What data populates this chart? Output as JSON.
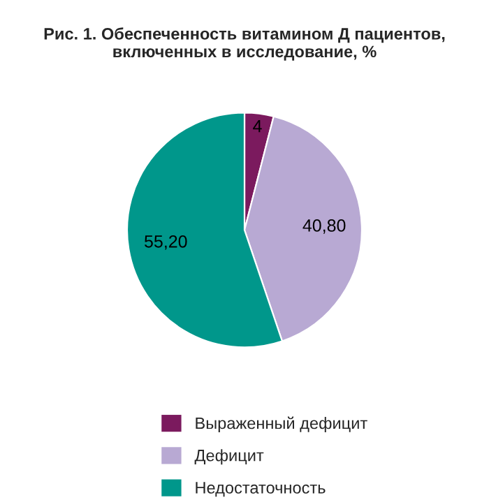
{
  "chart_data": {
    "type": "pie",
    "title": "Рис. 1. Обеспеченность витамином Д пациентов, включенных в исследование, %",
    "categories": [
      "Выраженный дефицит",
      "Дефицит",
      "Недостаточность"
    ],
    "values": [
      4,
      40.8,
      55.2
    ],
    "value_labels": [
      "4",
      "40,80",
      "55,20"
    ],
    "colors": [
      "#7b1a5e",
      "#b8a9d3",
      "#00978b"
    ],
    "legend": "bottom"
  }
}
